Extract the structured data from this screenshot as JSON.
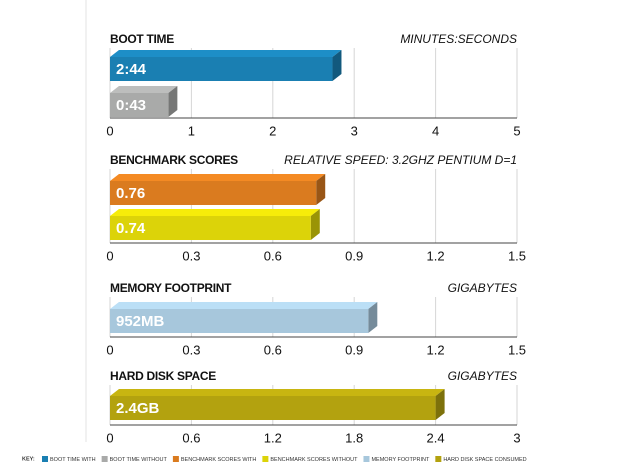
{
  "chart_data": [
    {
      "type": "bar",
      "orientation": "horizontal",
      "title": "BOOT TIME",
      "unit_label": "MINUTES:SECONDS",
      "series": [
        {
          "name": "BOOT TIME WITH",
          "color": "#1a7fb2",
          "values": [
            2.733
          ],
          "value_labels": [
            "2:44"
          ]
        },
        {
          "name": "BOOT TIME WITHOUT",
          "color": "#a9aaa9",
          "values": [
            0.717
          ],
          "value_labels": [
            "0:43"
          ]
        }
      ],
      "xlim": [
        0,
        5
      ],
      "xticks": [
        0,
        1,
        2,
        3,
        4,
        5
      ],
      "grid": true
    },
    {
      "type": "bar",
      "orientation": "horizontal",
      "title": "BENCHMARK SCORES",
      "unit_label": "RELATIVE SPEED: 3.2GHZ PENTIUM D=1",
      "series": [
        {
          "name": "BENCHMARK SCORES WITH",
          "color": "#da7b1f",
          "values": [
            0.76
          ]
        },
        {
          "name": "BENCHMARK SCORES WITHOUT",
          "color": "#dcd309",
          "values": [
            0.74
          ]
        }
      ],
      "xlim": [
        0,
        1.5
      ],
      "xticks": [
        0,
        0.3,
        0.6,
        0.9,
        1.2,
        1.5
      ],
      "grid": true
    },
    {
      "type": "bar",
      "orientation": "horizontal",
      "title": "MEMORY FOOTPRINT",
      "unit_label": "GIGABYTES",
      "series": [
        {
          "name": "MEMORY FOOTPRINT",
          "color": "#a7c7dc",
          "values": [
            0.952
          ],
          "value_labels": [
            "952MB"
          ]
        }
      ],
      "xlim": [
        0,
        1.5
      ],
      "xticks": [
        0,
        0.3,
        0.6,
        0.9,
        1.2,
        1.5
      ],
      "grid": true
    },
    {
      "type": "bar",
      "orientation": "horizontal",
      "title": "HARD DISK SPACE",
      "unit_label": "GIGABYTES",
      "series": [
        {
          "name": "HARD DISK SPACE CONSUMED",
          "color": "#b3a20f",
          "values": [
            2.4
          ],
          "value_labels": [
            "2.4GB"
          ]
        }
      ],
      "xlim": [
        0,
        3
      ],
      "xticks": [
        0,
        0.6,
        1.2,
        1.8,
        2.4,
        3
      ],
      "grid": true
    }
  ],
  "legend_title": "KEY:"
}
